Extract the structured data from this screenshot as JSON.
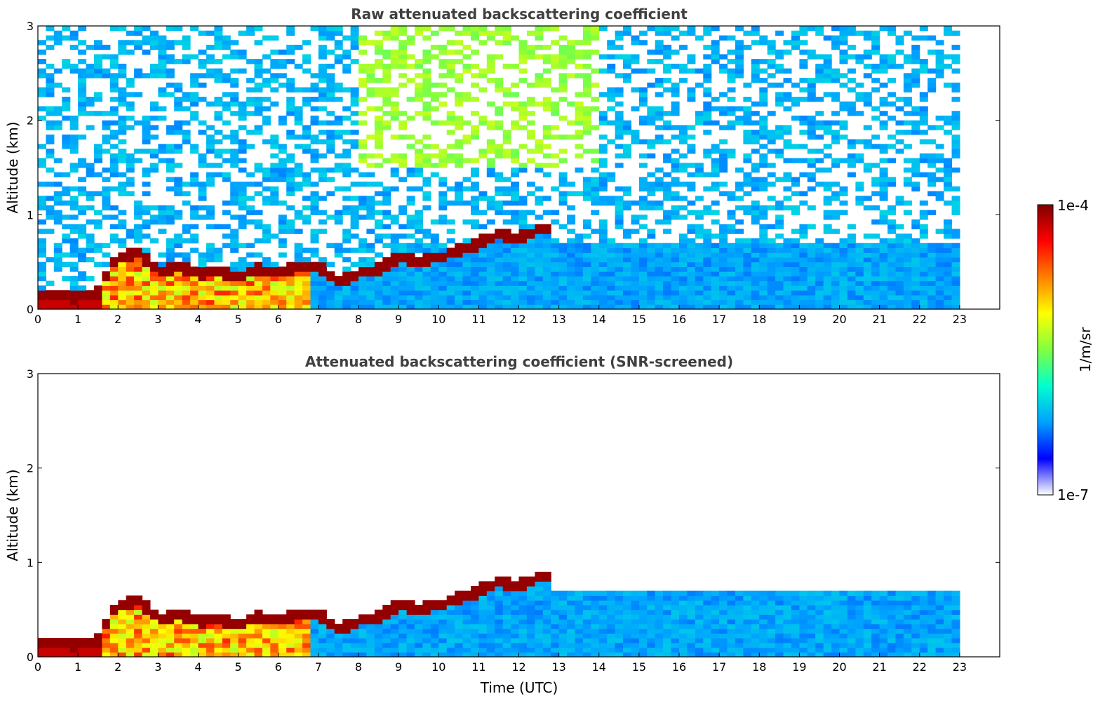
{
  "colormap": [
    "#ffffff",
    "#0000ff",
    "#00a0ff",
    "#00ffd0",
    "#80ff40",
    "#ffff00",
    "#ff8000",
    "#ff0000",
    "#800000"
  ],
  "chart_data": [
    {
      "type": "heatmap",
      "title": "Raw attenuated backscattering coefficient",
      "xlabel": "",
      "ylabel": "Altitude (km)",
      "xlim": [
        0,
        24
      ],
      "ylim": [
        0,
        3
      ],
      "xticks": [
        "0",
        "1",
        "2",
        "3",
        "4",
        "5",
        "6",
        "7",
        "8",
        "9",
        "10",
        "11",
        "12",
        "13",
        "14",
        "15",
        "16",
        "17",
        "18",
        "19",
        "20",
        "21",
        "22",
        "23"
      ],
      "yticks": [
        "0",
        "1",
        "2",
        "3"
      ],
      "data_end_time": 23,
      "boundary_layer_top_km": [
        [
          0,
          0.15
        ],
        [
          0.5,
          0.14
        ],
        [
          1.0,
          0.13
        ],
        [
          1.5,
          0.17
        ],
        [
          1.8,
          0.45
        ],
        [
          2.0,
          0.55
        ],
        [
          2.5,
          0.6
        ],
        [
          3.0,
          0.4
        ],
        [
          3.5,
          0.45
        ],
        [
          4.0,
          0.38
        ],
        [
          4.5,
          0.4
        ],
        [
          5.0,
          0.35
        ],
        [
          5.5,
          0.42
        ],
        [
          6.0,
          0.4
        ],
        [
          6.5,
          0.45
        ],
        [
          7.0,
          0.45
        ],
        [
          7.5,
          0.3
        ],
        [
          8.0,
          0.38
        ],
        [
          8.5,
          0.42
        ],
        [
          9.0,
          0.55
        ],
        [
          9.5,
          0.5
        ],
        [
          10.0,
          0.55
        ],
        [
          10.5,
          0.62
        ],
        [
          11.0,
          0.7
        ],
        [
          11.5,
          0.8
        ],
        [
          12.0,
          0.75
        ],
        [
          12.5,
          0.85
        ]
      ]
    },
    {
      "type": "heatmap",
      "title": "Attenuated backscattering coefficient (SNR-screened)",
      "xlabel": "Time (UTC)",
      "ylabel": "Altitude (km)",
      "xlim": [
        0,
        24
      ],
      "ylim": [
        0,
        3
      ],
      "xticks": [
        "0",
        "1",
        "2",
        "3",
        "4",
        "5",
        "6",
        "7",
        "8",
        "9",
        "10",
        "11",
        "12",
        "13",
        "14",
        "15",
        "16",
        "17",
        "18",
        "19",
        "20",
        "21",
        "22",
        "23"
      ],
      "yticks": [
        "0",
        "1",
        "2",
        "3"
      ],
      "data_end_time": 23,
      "boundary_layer_top_km": [
        [
          0,
          0.15
        ],
        [
          0.5,
          0.14
        ],
        [
          1.0,
          0.13
        ],
        [
          1.5,
          0.17
        ],
        [
          1.8,
          0.45
        ],
        [
          2.0,
          0.55
        ],
        [
          2.5,
          0.6
        ],
        [
          3.0,
          0.4
        ],
        [
          3.5,
          0.45
        ],
        [
          4.0,
          0.38
        ],
        [
          4.5,
          0.4
        ],
        [
          5.0,
          0.35
        ],
        [
          5.5,
          0.42
        ],
        [
          6.0,
          0.4
        ],
        [
          6.5,
          0.45
        ],
        [
          7.0,
          0.45
        ],
        [
          7.5,
          0.3
        ],
        [
          8.0,
          0.38
        ],
        [
          8.5,
          0.42
        ],
        [
          9.0,
          0.55
        ],
        [
          9.5,
          0.5
        ],
        [
          10.0,
          0.55
        ],
        [
          10.5,
          0.62
        ],
        [
          11.0,
          0.7
        ],
        [
          11.5,
          0.8
        ],
        [
          12.0,
          0.75
        ],
        [
          12.5,
          0.85
        ]
      ]
    }
  ],
  "colorbar": {
    "label": "1/m/sr",
    "max_label": "1e-4",
    "min_label": "1e-7",
    "scale": "log",
    "range": [
      1e-07,
      0.0001
    ]
  }
}
